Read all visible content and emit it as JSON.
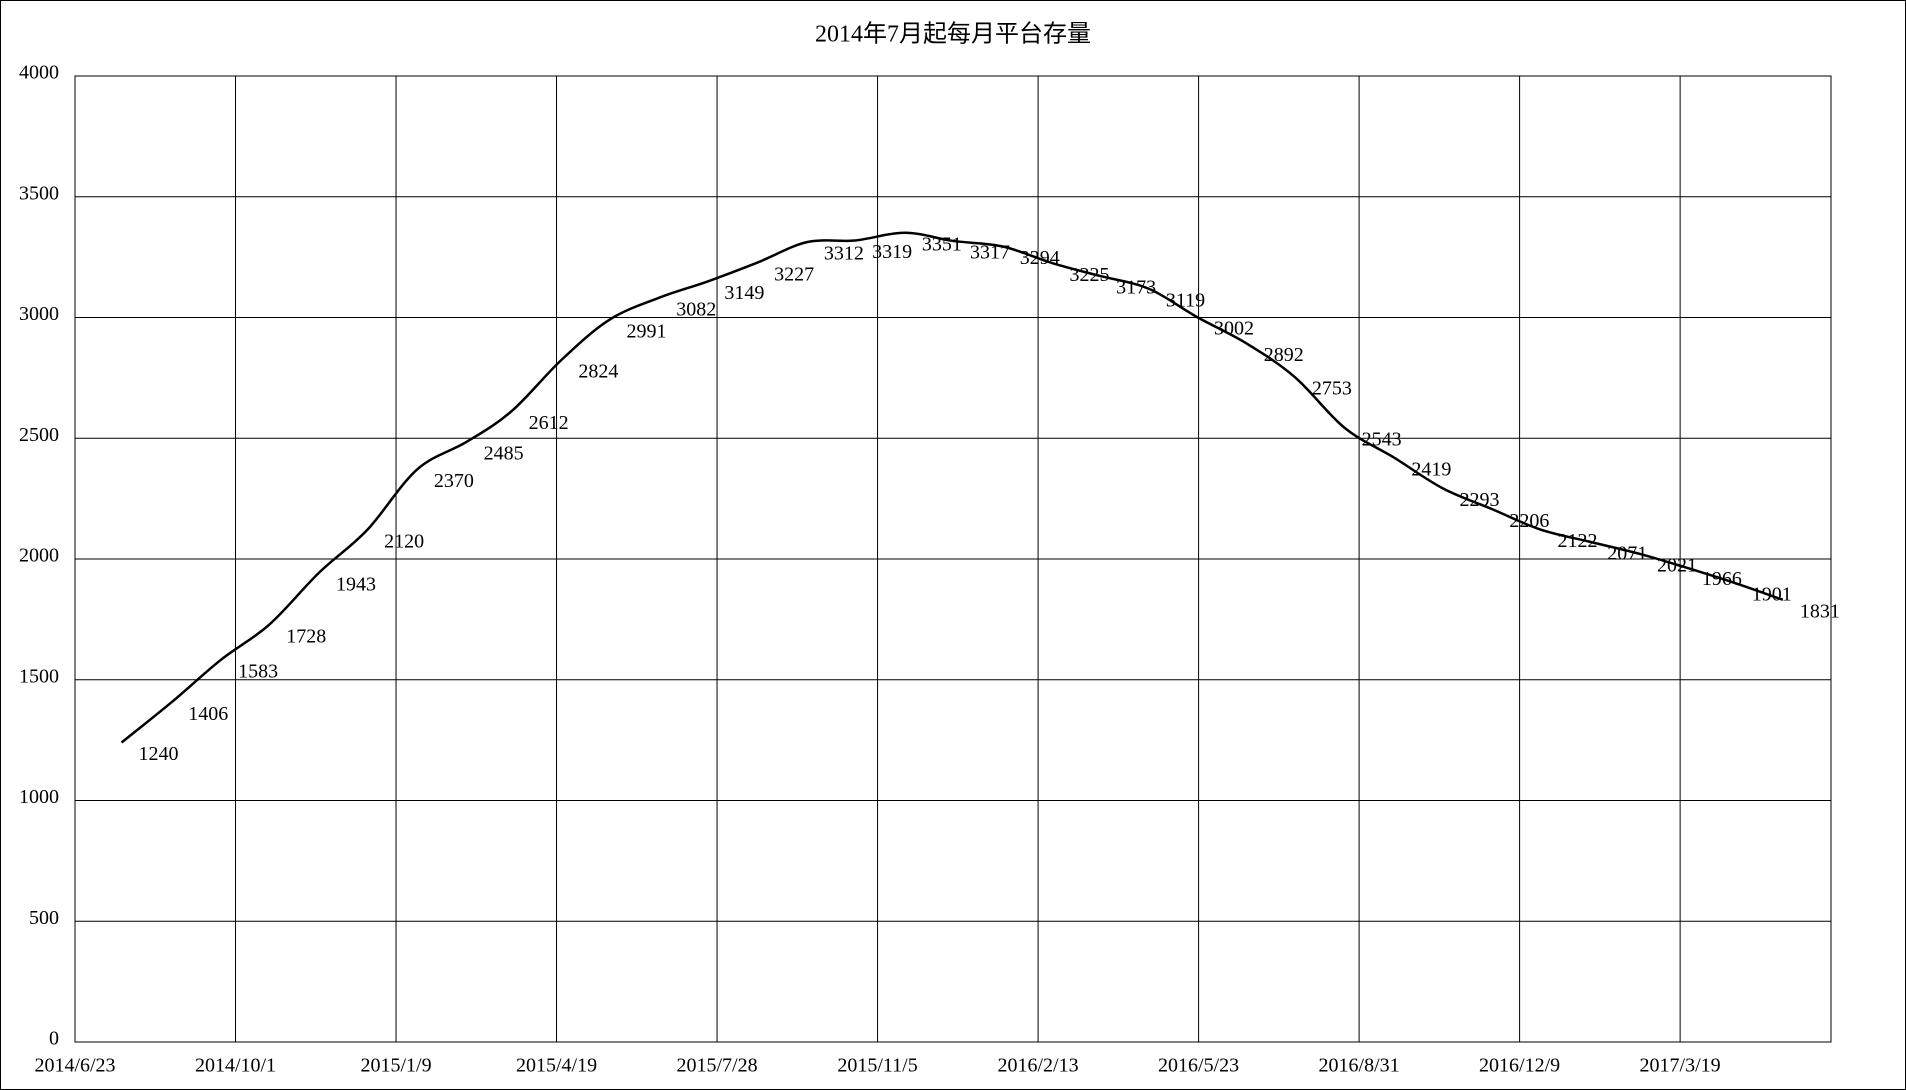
{
  "chart_data": {
    "type": "line",
    "title": "2014年7月起每月平台存量",
    "x": [
      "2014/7/22",
      "2014/8/22",
      "2014/9/22",
      "2014/10/22",
      "2014/11/22",
      "2014/12/22",
      "2015/1/22",
      "2015/2/22",
      "2015/3/22",
      "2015/4/22",
      "2015/5/22",
      "2015/6/22",
      "2015/7/22",
      "2015/8/22",
      "2015/9/22",
      "2015/10/22",
      "2015/11/22",
      "2015/12/22",
      "2016/1/22",
      "2016/2/22",
      "2016/3/22",
      "2016/4/22",
      "2016/5/22",
      "2016/6/22",
      "2016/7/22",
      "2016/8/22",
      "2016/9/22",
      "2016/10/22",
      "2016/11/22",
      "2016/12/22",
      "2017/1/22",
      "2017/2/22",
      "2017/3/22",
      "2017/4/22",
      "2017/5/22"
    ],
    "values": [
      1240,
      1406,
      1583,
      1728,
      1943,
      2120,
      2370,
      2485,
      2612,
      2824,
      2991,
      3082,
      3149,
      3227,
      3312,
      3319,
      3351,
      3317,
      3294,
      3225,
      3173,
      3119,
      3002,
      2892,
      2753,
      2543,
      2419,
      2293,
      2206,
      2122,
      2071,
      2021,
      1966,
      1901,
      1831
    ],
    "color": "#000000",
    "xlim": [
      "2014/6/23",
      "2017/6/21"
    ],
    "xticks": [
      "2014/6/23",
      "2014/10/1",
      "2015/1/9",
      "2015/4/19",
      "2015/7/28",
      "2015/11/5",
      "2016/2/13",
      "2016/5/23",
      "2016/8/31",
      "2016/12/9",
      "2017/3/19"
    ],
    "ylim": [
      0,
      4000
    ],
    "yticks": [
      0,
      500,
      1000,
      1500,
      2000,
      2500,
      3000,
      3500,
      4000
    ],
    "grid": true
  }
}
